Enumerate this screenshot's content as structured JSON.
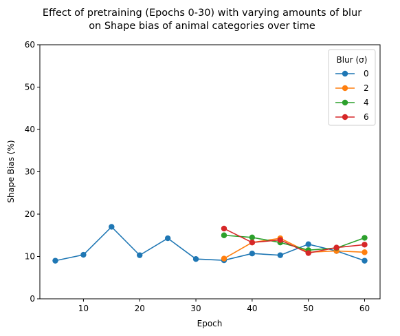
{
  "chart_data": {
    "type": "line",
    "title_line1": "Effect of pretraining (Epochs 0-30) with varying amounts of blur",
    "title_line2": "on Shape bias of animal categories over time",
    "xlabel": "Epoch",
    "ylabel": "Shape Bias (%)",
    "xlim": [
      2.25,
      62.75
    ],
    "ylim": [
      0,
      60
    ],
    "xticks": [
      10,
      20,
      30,
      40,
      50,
      60
    ],
    "yticks": [
      0,
      10,
      20,
      30,
      40,
      50,
      60
    ],
    "legend_title": "Blur (σ)",
    "legend_position": "top-right",
    "grid": false,
    "series": [
      {
        "name": "0",
        "color": "#1f77b4",
        "x": [
          5,
          10,
          15,
          20,
          25,
          30,
          35,
          40,
          45,
          50,
          55,
          60
        ],
        "y": [
          9.0,
          10.4,
          17.0,
          10.3,
          14.3,
          9.4,
          9.1,
          10.7,
          10.3,
          12.9,
          11.3,
          9.0
        ]
      },
      {
        "name": "2",
        "color": "#ff7f0e",
        "x": [
          35,
          40,
          45,
          50,
          55,
          60
        ],
        "y": [
          9.5,
          13.3,
          14.3,
          11.0,
          11.3,
          11.0
        ]
      },
      {
        "name": "4",
        "color": "#2ca02c",
        "x": [
          35,
          40,
          45,
          50,
          55,
          60
        ],
        "y": [
          15.0,
          14.5,
          13.3,
          11.5,
          12.0,
          14.4
        ]
      },
      {
        "name": "6",
        "color": "#d62728",
        "x": [
          35,
          40,
          45,
          50,
          55,
          60
        ],
        "y": [
          16.6,
          13.3,
          13.9,
          10.8,
          12.1,
          12.8
        ]
      }
    ]
  }
}
